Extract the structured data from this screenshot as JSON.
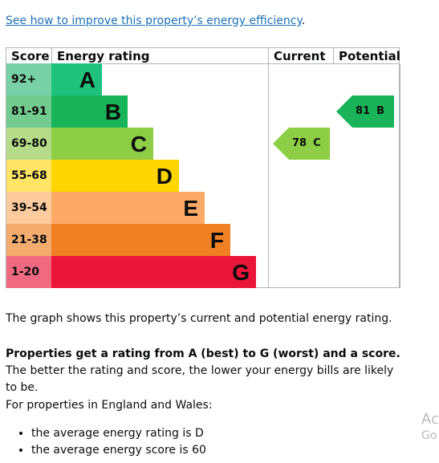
{
  "link": "See how to improve this property’s energy efficiency",
  "link_end": ".",
  "table": {
    "headers": [
      "Score",
      "Energy rating",
      "Current",
      "Potential"
    ],
    "rows": [
      {
        "score": "92+",
        "rating": "A",
        "color": "#1fc27c",
        "score_color": "#78d1a6"
      },
      {
        "score": "81-91",
        "rating": "B",
        "color": "#19b459",
        "score_color": "#74cb90"
      },
      {
        "score": "69-80",
        "rating": "C",
        "color": "#8dce46",
        "score_color": "#b6dc8a"
      },
      {
        "score": "55-68",
        "rating": "D",
        "color": "#ffd500",
        "score_color": "#ffe466"
      },
      {
        "score": "39-54",
        "rating": "E",
        "color": "#fcaa65",
        "score_color": "#fdcb9d"
      },
      {
        "score": "21-38",
        "rating": "F",
        "color": "#ef8023",
        "score_color": "#f4ac6e"
      },
      {
        "score": "1-20",
        "rating": "G",
        "color": "#e9153b",
        "score_color": "#ef6a80"
      }
    ]
  },
  "current": {
    "score": "78",
    "rating": "C"
  },
  "potential": {
    "score": "81",
    "rating": "B"
  },
  "paragraphs": [
    "The graph shows this property’s current and potential energy rating."
  ],
  "bold_paragraph": {
    "bold": "Properties get a rating from A (best) to G (worst) and a score.",
    "rest": " The better the rating and score, the lower your energy bills are likely to be."
  },
  "list_intro": "For properties in England and Wales:",
  "list": [
    "the average energy rating is D",
    "the average energy score is 60"
  ],
  "watermark": [
    "Ac",
    "Go"
  ]
}
